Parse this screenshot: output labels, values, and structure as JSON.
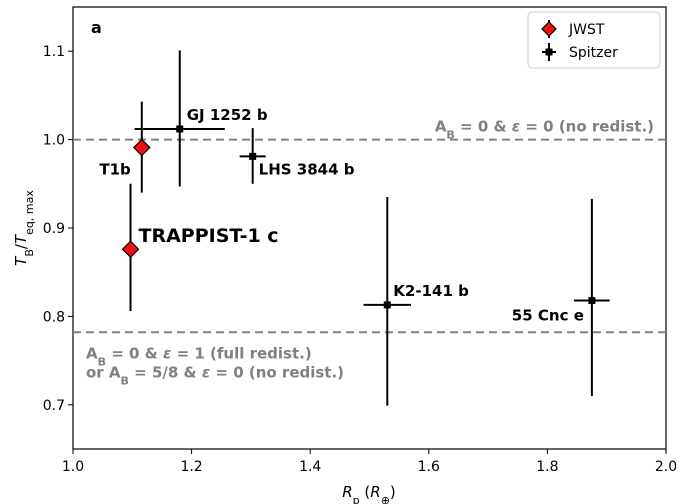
{
  "chart_data": {
    "type": "scatter",
    "panel_label": "a",
    "xlim": [
      1.0,
      2.0
    ],
    "ylim": [
      0.65,
      1.15
    ],
    "x_ticks": [
      1.0,
      1.2,
      1.4,
      1.6,
      1.8,
      2.0
    ],
    "x_tick_labels": [
      "1.0",
      "1.2",
      "1.4",
      "1.6",
      "1.8",
      "2.0"
    ],
    "y_ticks": [
      0.7,
      0.8,
      0.9,
      1.0,
      1.1
    ],
    "y_tick_labels": [
      "0.7",
      "0.8",
      "0.9",
      "1.0",
      "1.1"
    ],
    "xlabel": {
      "main": "R",
      "sub": "p",
      "rest": " (R",
      "rest_sub": "⊕",
      "close": ")"
    },
    "ylabel": {
      "main": "T",
      "sub1": "B",
      "slash": "/T",
      "sub2": "eq, max"
    },
    "legend": {
      "placement": "top-right",
      "entries": [
        {
          "label": "JWST",
          "marker": "diamond",
          "color": "#ee1111"
        },
        {
          "label": "Spitzer",
          "marker": "square",
          "color": "#000000"
        }
      ]
    },
    "reference_lines": [
      {
        "y": 1.0,
        "label_parts": [
          "A",
          "B",
          " = 0 & ",
          "ε",
          " = 0 (no redist.)"
        ]
      },
      {
        "y": 0.782,
        "label_lines": [
          [
            "A",
            "B",
            " = 0 & ",
            "ε",
            " = 1 (full redist.)"
          ],
          [
            "or A",
            "B",
            " = 5/8 & ",
            "ε",
            " = 0 (no redist.)"
          ]
        ]
      }
    ],
    "series": [
      {
        "name": "JWST",
        "points": [
          {
            "label": "TRAPPIST-1 c",
            "x": 1.097,
            "y": 0.876,
            "x_err": 0.0,
            "y_err_low": 0.07,
            "y_err_high": 0.074
          },
          {
            "label": "T1b",
            "x": 1.116,
            "y": 0.991,
            "x_err": 0.0,
            "y_err_low": 0.051,
            "y_err_high": 0.052
          }
        ]
      },
      {
        "name": "Spitzer",
        "points": [
          {
            "label": "GJ 1252 b",
            "x": 1.18,
            "y": 1.012,
            "x_err": 0.076,
            "y_err_low": 0.065,
            "y_err_high": 0.089
          },
          {
            "label": "LHS 3844 b",
            "x": 1.303,
            "y": 0.981,
            "x_err": 0.022,
            "y_err_low": 0.031,
            "y_err_high": 0.032
          },
          {
            "label": "K2-141 b",
            "x": 1.53,
            "y": 0.813,
            "x_err": 0.04,
            "y_err_low": 0.114,
            "y_err_high": 0.122
          },
          {
            "label": "55 Cnc e",
            "x": 1.875,
            "y": 0.818,
            "x_err": 0.03,
            "y_err_low": 0.108,
            "y_err_high": 0.115
          }
        ]
      }
    ]
  }
}
